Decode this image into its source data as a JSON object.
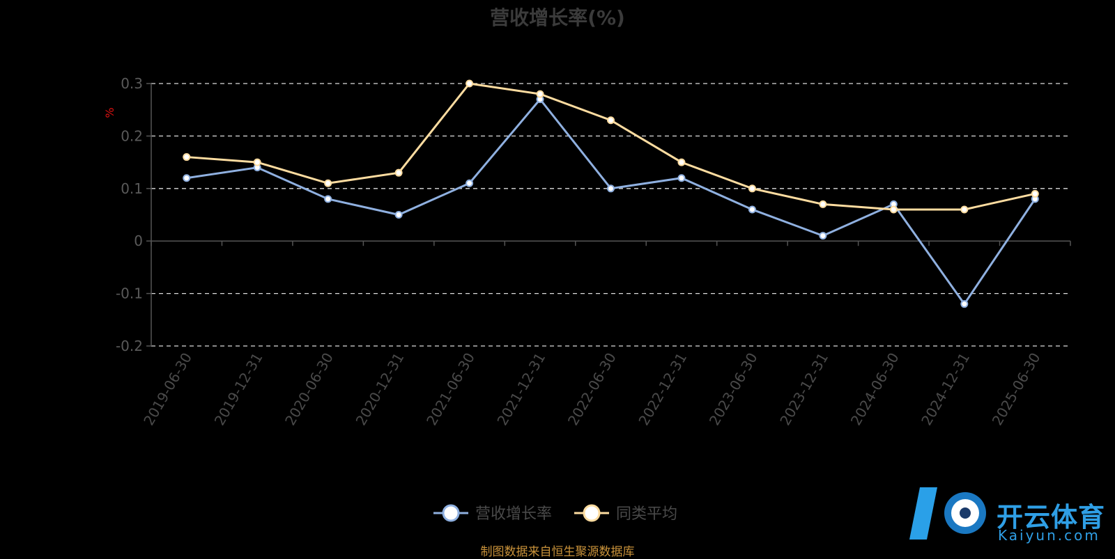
{
  "chart_data": {
    "type": "line",
    "title": "营收增长率(%)",
    "ylabel": "%",
    "ylim": [
      -0.2,
      0.3
    ],
    "yticks": [
      "0.3",
      "0.2",
      "0.1",
      "0",
      "-0.1",
      "-0.2"
    ],
    "grid": true,
    "legend_position": "bottom",
    "categories": [
      "2019-06-30",
      "2019-12-31",
      "2020-06-30",
      "2020-12-31",
      "2021-06-30",
      "2021-12-31",
      "2022-06-30",
      "2022-12-31",
      "2023-06-30",
      "2023-12-31",
      "2024-06-30",
      "2024-12-31",
      "2025-06-30"
    ],
    "series": [
      {
        "name": "营收增长率",
        "color": "#8fb0e0",
        "values": [
          0.12,
          0.14,
          0.08,
          0.05,
          0.11,
          0.27,
          0.1,
          0.12,
          0.06,
          0.01,
          0.07,
          -0.12,
          0.08
        ]
      },
      {
        "name": "同类平均",
        "color": "#fddca0",
        "values": [
          0.16,
          0.15,
          0.11,
          0.13,
          0.3,
          0.28,
          0.23,
          0.15,
          0.1,
          0.07,
          0.06,
          0.06,
          0.09
        ]
      }
    ],
    "source_note": "制图数据来自恒生聚源数据库"
  },
  "watermark": {
    "brand": "开云体育",
    "domain": "Kaiyun.com"
  }
}
